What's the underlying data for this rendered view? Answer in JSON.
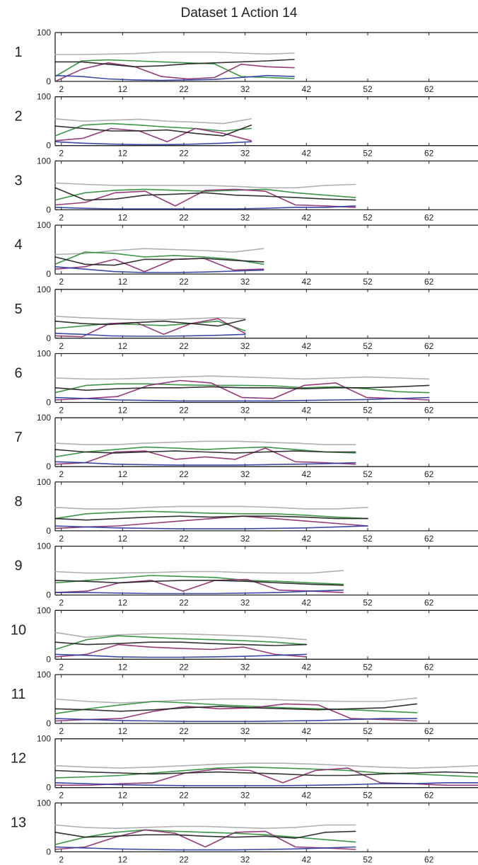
{
  "title": "Dataset 1 Action 14",
  "chart_data": {
    "type": "line",
    "title": "Dataset 1 Action 14",
    "xlabel": "",
    "ylabel": "",
    "xlim": [
      1,
      70
    ],
    "ylim": [
      0,
      100
    ],
    "yticks": [
      "0",
      "100"
    ],
    "xticks": [
      "2",
      "12",
      "22",
      "32",
      "42",
      "52",
      "62"
    ],
    "grid": false,
    "colors": [
      "#a9a9a9",
      "#2e8b3a",
      "#8b2a6e",
      "#222222",
      "#2a3a9a",
      "#98c48a"
    ],
    "panels": [
      {
        "label": "1",
        "x_end": 40,
        "series": [
          {
            "values": [
              55,
              55,
              56,
              57,
              60,
              60,
              60,
              58,
              56,
              58
            ]
          },
          {
            "values": [
              10,
              42,
              44,
              42,
              40,
              38,
              36,
              10,
              8,
              6
            ]
          },
          {
            "values": [
              0,
              25,
              38,
              30,
              10,
              5,
              8,
              35,
              30,
              28
            ]
          },
          {
            "values": [
              40,
              40,
              35,
              30,
              32,
              36,
              38,
              40,
              42,
              45
            ]
          },
          {
            "values": [
              12,
              10,
              5,
              3,
              2,
              3,
              4,
              8,
              12,
              10
            ]
          }
        ]
      },
      {
        "label": "2",
        "x_end": 33,
        "series": [
          {
            "values": [
              55,
              50,
              52,
              54,
              50,
              48,
              45,
              55
            ]
          },
          {
            "values": [
              20,
              42,
              45,
              42,
              38,
              35,
              30,
              35
            ]
          },
          {
            "values": [
              10,
              15,
              35,
              30,
              8,
              35,
              25,
              10
            ]
          },
          {
            "values": [
              40,
              35,
              30,
              30,
              32,
              25,
              20,
              42
            ]
          },
          {
            "values": [
              8,
              5,
              3,
              2,
              2,
              3,
              5,
              8
            ]
          }
        ]
      },
      {
        "label": "3",
        "x_end": 50,
        "series": [
          {
            "values": [
              55,
              52,
              50,
              50,
              50,
              50,
              48,
              45,
              45,
              50,
              52
            ]
          },
          {
            "values": [
              20,
              35,
              40,
              42,
              40,
              38,
              40,
              42,
              35,
              30,
              25
            ]
          },
          {
            "values": [
              10,
              15,
              35,
              38,
              8,
              40,
              42,
              38,
              10,
              8,
              5
            ]
          },
          {
            "values": [
              45,
              20,
              22,
              30,
              32,
              35,
              30,
              28,
              25,
              22,
              20
            ]
          },
          {
            "values": [
              5,
              3,
              2,
              2,
              2,
              2,
              2,
              3,
              5,
              5,
              8
            ]
          }
        ]
      },
      {
        "label": "4",
        "x_end": 35,
        "series": [
          {
            "values": [
              40,
              42,
              48,
              52,
              50,
              48,
              45,
              52
            ]
          },
          {
            "values": [
              20,
              45,
              42,
              35,
              38,
              35,
              30,
              20
            ]
          },
          {
            "values": [
              10,
              15,
              30,
              5,
              30,
              32,
              8,
              10
            ]
          },
          {
            "values": [
              35,
              20,
              18,
              30,
              30,
              32,
              28,
              25
            ]
          },
          {
            "values": [
              15,
              10,
              5,
              3,
              3,
              4,
              6,
              8
            ]
          }
        ]
      },
      {
        "label": "5",
        "x_end": 32,
        "series": [
          {
            "values": [
              45,
              42,
              40,
              38,
              38,
              40,
              42,
              40
            ]
          },
          {
            "values": [
              20,
              25,
              30,
              28,
              26,
              30,
              35,
              15
            ]
          },
          {
            "values": [
              5,
              3,
              30,
              32,
              8,
              30,
              40,
              10
            ]
          },
          {
            "values": [
              35,
              30,
              28,
              32,
              35,
              30,
              25,
              38
            ]
          },
          {
            "values": [
              10,
              8,
              5,
              4,
              4,
              5,
              6,
              8
            ]
          }
        ]
      },
      {
        "label": "6",
        "x_end": 62,
        "series": [
          {
            "values": [
              50,
              48,
              48,
              50,
              52,
              54,
              52,
              50,
              48,
              50,
              52,
              50,
              48
            ]
          },
          {
            "values": [
              20,
              35,
              38,
              38,
              36,
              35,
              35,
              34,
              30,
              32,
              28,
              22,
              20
            ]
          },
          {
            "values": [
              5,
              8,
              12,
              35,
              45,
              40,
              10,
              8,
              35,
              40,
              10,
              8,
              5
            ]
          },
          {
            "values": [
              30,
              25,
              28,
              30,
              30,
              32,
              30,
              30,
              28,
              30,
              30,
              32,
              35
            ]
          },
          {
            "values": [
              10,
              8,
              5,
              4,
              3,
              3,
              3,
              3,
              4,
              5,
              6,
              8,
              10
            ]
          }
        ]
      },
      {
        "label": "7",
        "x_end": 50,
        "series": [
          {
            "values": [
              48,
              45,
              45,
              48,
              50,
              52,
              52,
              50,
              48,
              45,
              45
            ]
          },
          {
            "values": [
              20,
              30,
              35,
              40,
              38,
              35,
              38,
              40,
              35,
              30,
              28
            ]
          },
          {
            "values": [
              5,
              8,
              30,
              32,
              15,
              20,
              15,
              38,
              10,
              8,
              5
            ]
          },
          {
            "values": [
              35,
              30,
              28,
              30,
              32,
              30,
              28,
              30,
              32,
              30,
              30
            ]
          },
          {
            "values": [
              10,
              8,
              5,
              4,
              3,
              3,
              3,
              4,
              5,
              6,
              8
            ]
          }
        ]
      },
      {
        "label": "8",
        "x_end": 52,
        "series": [
          {
            "values": [
              48,
              45,
              45,
              48,
              50,
              50,
              50,
              48,
              45,
              45,
              48
            ]
          },
          {
            "values": [
              25,
              35,
              38,
              40,
              38,
              36,
              35,
              35,
              32,
              28,
              25
            ]
          },
          {
            "values": [
              5,
              8,
              10,
              15,
              20,
              25,
              30,
              25,
              20,
              15,
              10
            ]
          },
          {
            "values": [
              25,
              22,
              25,
              28,
              30,
              28,
              30,
              30,
              28,
              25,
              25
            ]
          },
          {
            "values": [
              10,
              8,
              6,
              5,
              4,
              4,
              4,
              5,
              6,
              8,
              10
            ]
          }
        ]
      },
      {
        "label": "9",
        "x_end": 48,
        "series": [
          {
            "values": [
              48,
              45,
              45,
              46,
              48,
              48,
              46,
              45,
              45,
              50
            ]
          },
          {
            "values": [
              25,
              30,
              35,
              40,
              38,
              36,
              30,
              28,
              25,
              22
            ]
          },
          {
            "values": [
              5,
              8,
              25,
              30,
              8,
              30,
              32,
              10,
              8,
              5
            ]
          },
          {
            "values": [
              30,
              28,
              25,
              28,
              30,
              30,
              28,
              25,
              22,
              20
            ]
          },
          {
            "values": [
              5,
              5,
              4,
              3,
              3,
              3,
              4,
              5,
              8,
              10
            ]
          }
        ]
      },
      {
        "label": "10",
        "x_end": 42,
        "series": [
          {
            "values": [
              55,
              45,
              50,
              52,
              52,
              50,
              48,
              45,
              40
            ]
          },
          {
            "values": [
              20,
              40,
              48,
              45,
              42,
              40,
              38,
              35,
              30
            ]
          },
          {
            "values": [
              5,
              10,
              30,
              25,
              22,
              20,
              25,
              10,
              5
            ]
          },
          {
            "values": [
              35,
              30,
              32,
              35,
              35,
              32,
              30,
              28,
              30
            ]
          },
          {
            "values": [
              10,
              8,
              5,
              4,
              4,
              5,
              6,
              8,
              10
            ]
          }
        ]
      },
      {
        "label": "11",
        "x_end": 60,
        "series": [
          {
            "values": [
              50,
              45,
              42,
              45,
              48,
              50,
              50,
              48,
              46,
              45,
              45,
              52
            ]
          },
          {
            "values": [
              20,
              30,
              38,
              45,
              42,
              38,
              35,
              32,
              30,
              28,
              25,
              22
            ]
          },
          {
            "values": [
              5,
              8,
              10,
              25,
              35,
              30,
              32,
              40,
              38,
              10,
              8,
              5
            ]
          },
          {
            "values": [
              30,
              28,
              25,
              28,
              32,
              35,
              32,
              30,
              28,
              30,
              32,
              40
            ]
          },
          {
            "values": [
              10,
              8,
              6,
              5,
              4,
              4,
              4,
              5,
              6,
              8,
              10,
              10
            ]
          }
        ]
      },
      {
        "label": "12",
        "x_end": 70,
        "series": [
          {
            "values": [
              45,
              42,
              40,
              42,
              45,
              48,
              50,
              50,
              48,
              45,
              42,
              40,
              42,
              45
            ]
          },
          {
            "values": [
              20,
              22,
              25,
              30,
              35,
              40,
              42,
              40,
              38,
              35,
              30,
              28,
              25,
              22
            ]
          },
          {
            "values": [
              5,
              5,
              8,
              10,
              30,
              38,
              35,
              10,
              35,
              40,
              10,
              8,
              5,
              5
            ]
          },
          {
            "values": [
              35,
              32,
              30,
              28,
              30,
              32,
              30,
              28,
              25,
              25,
              28,
              30,
              32,
              30
            ]
          },
          {
            "values": [
              10,
              8,
              6,
              5,
              4,
              4,
              4,
              4,
              5,
              6,
              8,
              8,
              10,
              10
            ]
          }
        ]
      },
      {
        "label": "13",
        "x_end": 50,
        "series": [
          {
            "values": [
              55,
              50,
              48,
              50,
              52,
              52,
              50,
              48,
              50,
              55,
              55
            ]
          },
          {
            "values": [
              15,
              30,
              40,
              45,
              42,
              40,
              38,
              35,
              30,
              25,
              20
            ]
          },
          {
            "values": [
              5,
              10,
              30,
              45,
              38,
              10,
              40,
              42,
              10,
              8,
              5
            ]
          },
          {
            "values": [
              40,
              30,
              32,
              35,
              35,
              32,
              30,
              32,
              28,
              40,
              42
            ]
          },
          {
            "values": [
              10,
              8,
              6,
              5,
              4,
              4,
              4,
              5,
              6,
              8,
              10
            ]
          }
        ]
      }
    ]
  }
}
